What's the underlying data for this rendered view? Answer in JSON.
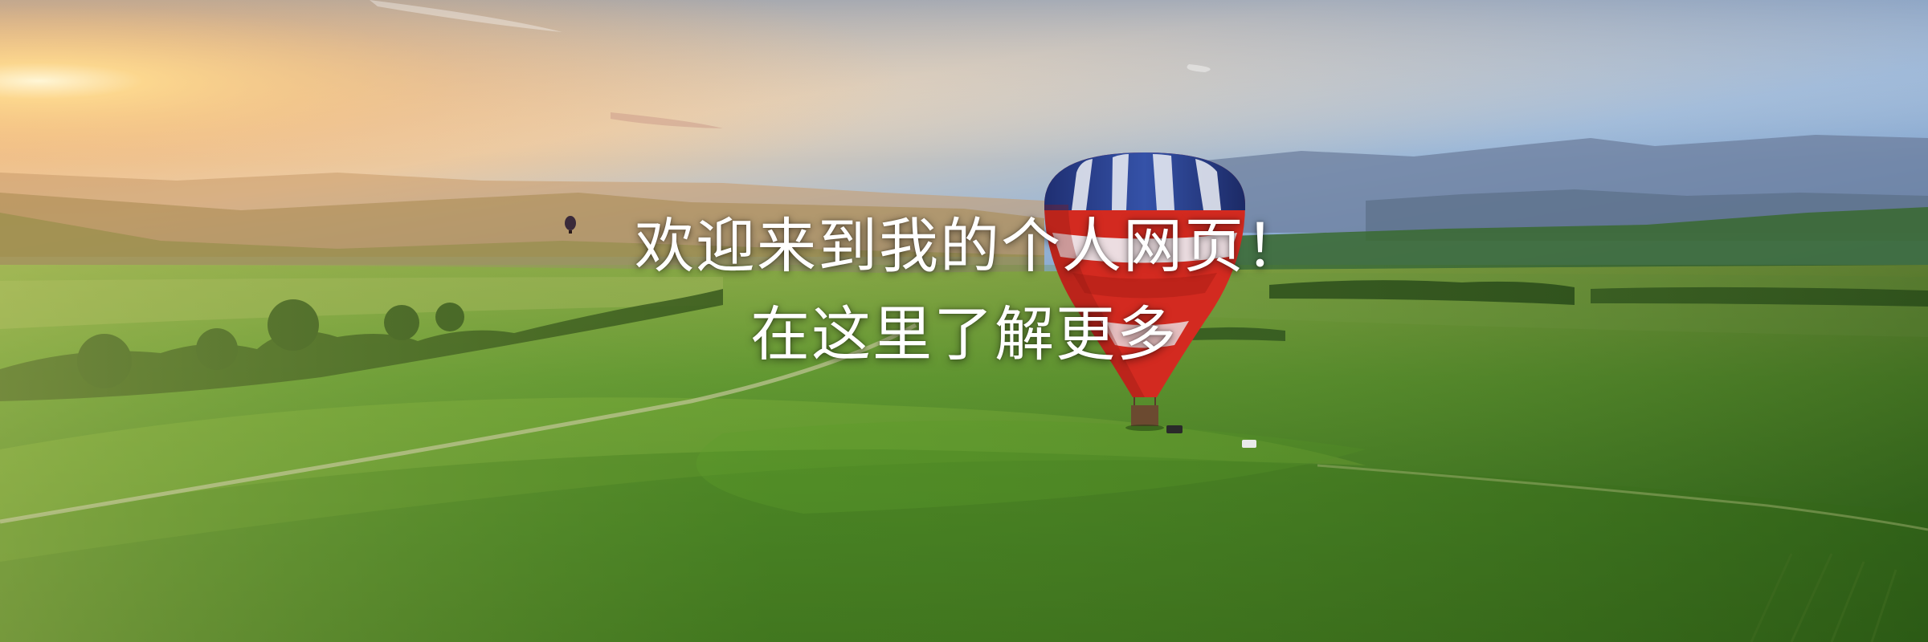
{
  "hero": {
    "line1": "欢迎来到我的个人网页！",
    "line2": "在这里了解更多"
  },
  "colors": {
    "sky_top": "#5a86c0",
    "sky_horizon": "#f3c98a",
    "sun": "#fff2c4",
    "field_green": "#4f8a28",
    "field_dark": "#2a4f12",
    "balloon_red": "#d7281f",
    "balloon_blue": "#243c8a",
    "text": "#ffffff"
  }
}
